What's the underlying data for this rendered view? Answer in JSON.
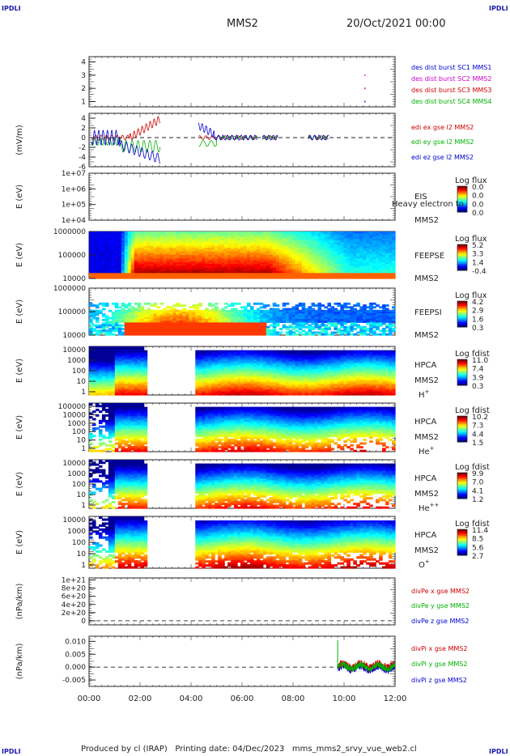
{
  "header": {
    "spacecraft": "MMS2",
    "datetime": "20/Oct/2021 00:00",
    "corner_left": "IPDLI",
    "corner_right": "IPDLI"
  },
  "footer": {
    "producer": "Produced by cl (IRAP)",
    "printing": "Printing date: 04/Dec/2023",
    "script": "mms_mms2_srvy_vue_web2.cl"
  },
  "chart_data": {
    "type": "line",
    "x_axis": {
      "ticks": [
        "00:00",
        "02:00",
        "04:00",
        "06:00",
        "08:00",
        "10:00",
        "12:00"
      ],
      "range_hours": [
        0,
        12
      ]
    },
    "panels": [
      {
        "id": "burst",
        "ytick_labels": [
          "4",
          "3",
          "2",
          "1"
        ],
        "ylim": [
          0.6,
          4.4
        ],
        "legend": [
          {
            "text": "des dist burst SC1 MMS1",
            "color": "#0000cc"
          },
          {
            "text": "des dist burst SC2 MMS2",
            "color": "#cc00cc"
          },
          {
            "text": "des dist burst SC3 MMS3",
            "color": "#cc0000"
          },
          {
            "text": "des dist burst SC4 MMS4",
            "color": "#00b000"
          }
        ],
        "points": [
          {
            "x": 10.8,
            "y": 3.0,
            "color": "#cc00cc"
          },
          {
            "x": 10.8,
            "y": 2.0,
            "color": "#cc0000"
          },
          {
            "x": 10.8,
            "y": 1.0,
            "color": "#0000cc"
          }
        ]
      },
      {
        "id": "edi",
        "ylabel": "(mV/m)",
        "ytick_labels": [
          "4",
          "2",
          "0",
          "-2",
          "-4",
          "-6"
        ],
        "ylim": [
          -6,
          5
        ],
        "legend": [
          {
            "text": "edi ex gse l2 MMS2",
            "color": "#cc0000"
          },
          {
            "text": "edi ey gse l2 MMS2",
            "color": "#00b000"
          },
          {
            "text": "edi ez gse l2 MMS2",
            "color": "#0000cc"
          }
        ]
      },
      {
        "id": "eis",
        "ylabel": "E (eV)",
        "ytick_labels": [
          "1e+07",
          "1e+06",
          "1e+05",
          "1e+04"
        ],
        "labels": [
          "EIS",
          "Heavy electron to",
          "MMS2"
        ],
        "colorbar": {
          "title": "Log flux",
          "ticks": [
            "0.0",
            "0.0",
            "0.0",
            "0.0"
          ]
        }
      },
      {
        "id": "feepse",
        "ylabel": "E (eV)",
        "ytick_labels": [
          "1000000",
          "100000",
          "10000"
        ],
        "labels": [
          "FEEPSE",
          "MMS2"
        ],
        "colorbar": {
          "title": "Log flux",
          "ticks": [
            "5.2",
            "3.3",
            "1.4",
            "-0.4"
          ]
        }
      },
      {
        "id": "feepsi",
        "ylabel": "E (eV)",
        "ytick_labels": [
          "1000000",
          "100000",
          "10000"
        ],
        "labels": [
          "FEEPSI",
          "MMS2"
        ],
        "colorbar": {
          "title": "Log flux",
          "ticks": [
            "4.2",
            "2.9",
            "1.6",
            "0.3"
          ]
        }
      },
      {
        "id": "hpca_h",
        "ylabel": "E (eV)",
        "ytick_labels": [
          "10000",
          "1000",
          "100",
          "10",
          "1"
        ],
        "labels": [
          "HPCA",
          "MMS2"
        ],
        "species": "H",
        "species_sup": "+",
        "colorbar": {
          "title": "Log fdist",
          "ticks": [
            "11.0",
            "7.4",
            "3.9",
            "0.3"
          ]
        }
      },
      {
        "id": "hpca_he",
        "ylabel": "E (eV)",
        "ytick_labels": [
          "100000",
          "10000",
          "1000",
          "100",
          "10",
          "1"
        ],
        "labels": [
          "HPCA",
          "MMS2"
        ],
        "species": "He",
        "species_sup": "+",
        "colorbar": {
          "title": "Log fdist",
          "ticks": [
            "10.2",
            "7.3",
            "4.4",
            "1.5"
          ]
        }
      },
      {
        "id": "hpca_hepp",
        "ylabel": "E (eV)",
        "ytick_labels": [
          "10000",
          "1000",
          "100",
          "10",
          "1"
        ],
        "labels": [
          "HPCA",
          "MMS2"
        ],
        "species": "He",
        "species_sup": "++",
        "colorbar": {
          "title": "Log fdist",
          "ticks": [
            "9.9",
            "7.0",
            "4.1",
            "1.2"
          ]
        }
      },
      {
        "id": "hpca_o",
        "ylabel": "E (eV)",
        "ytick_labels": [
          "10000",
          "1000",
          "100",
          "10",
          "1"
        ],
        "labels": [
          "HPCA",
          "MMS2"
        ],
        "species": "O",
        "species_sup": "+",
        "colorbar": {
          "title": "Log fdist",
          "ticks": [
            "11.4",
            "8.5",
            "5.6",
            "2.7"
          ]
        }
      },
      {
        "id": "divpe",
        "ylabel": "(nPa/km)",
        "ytick_labels": [
          "1e+21",
          "8e+20",
          "6e+20",
          "4e+20",
          "2e+20",
          "0"
        ],
        "ylim": [
          -1e+20,
          1.05e+21
        ],
        "legend": [
          {
            "text": "divPe x gse MMS2",
            "color": "#cc0000"
          },
          {
            "text": "divPe y gse MMS2",
            "color": "#00b000"
          },
          {
            "text": "divPe z gse MMS2",
            "color": "#0000cc"
          }
        ]
      },
      {
        "id": "divpi",
        "ylabel": "(nPa/km)",
        "ytick_labels": [
          "0.010",
          "0.005",
          "0.000",
          "-0.005"
        ],
        "ylim": [
          -0.0075,
          0.012
        ],
        "legend": [
          {
            "text": "divPi x gse MMS2",
            "color": "#cc0000"
          },
          {
            "text": "divPi y gse MMS2",
            "color": "#00b000"
          },
          {
            "text": "divPi z gse MMS2",
            "color": "#0000cc"
          }
        ]
      }
    ]
  }
}
